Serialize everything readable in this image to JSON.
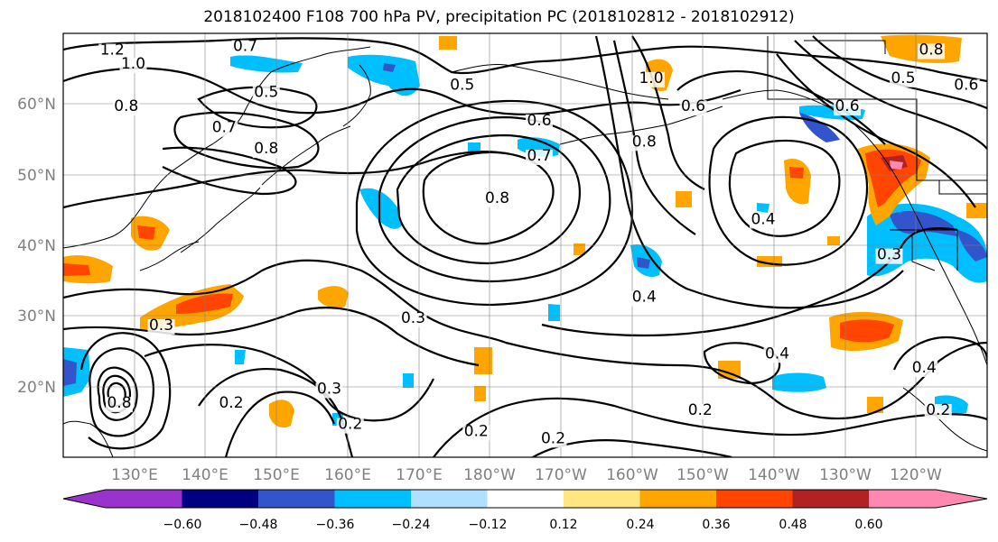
{
  "title": "2018102400 F108 700 hPa PV, precipitation PC (2018102812 - 2018102912)",
  "map": {
    "projection": "equirectangular",
    "lon_range": [
      120,
      252
    ],
    "lat_range": [
      10,
      70
    ],
    "grid": true,
    "lon_ticks": [
      "130°E",
      "140°E",
      "150°E",
      "160°E",
      "170°E",
      "180°W",
      "170°W",
      "160°W",
      "150°W",
      "140°W",
      "130°W",
      "120°W"
    ],
    "lat_ticks": [
      "20°N",
      "30°N",
      "40°N",
      "50°N",
      "60°N"
    ]
  },
  "pv_contour_labels": [
    {
      "text": "1.2",
      "lon": 127,
      "lat": 67
    },
    {
      "text": "1.0",
      "lon": 130,
      "lat": 65
    },
    {
      "text": "0.7",
      "lon": 146,
      "lat": 67.5
    },
    {
      "text": "0.8",
      "lon": 129,
      "lat": 59
    },
    {
      "text": "0.5",
      "lon": 149,
      "lat": 61
    },
    {
      "text": "0.7",
      "lon": 143,
      "lat": 56
    },
    {
      "text": "0.8",
      "lon": 149,
      "lat": 53
    },
    {
      "text": "0.5",
      "lon": 177,
      "lat": 62
    },
    {
      "text": "0.6",
      "lon": 188,
      "lat": 57
    },
    {
      "text": "0.7",
      "lon": 188,
      "lat": 52
    },
    {
      "text": "0.8",
      "lon": 182,
      "lat": 46
    },
    {
      "text": "0.8",
      "lon": 203,
      "lat": 54
    },
    {
      "text": "1.0",
      "lon": 204,
      "lat": 63
    },
    {
      "text": "0.6",
      "lon": 210,
      "lat": 59
    },
    {
      "text": "0.4",
      "lon": 220,
      "lat": 43
    },
    {
      "text": "0.6",
      "lon": 232,
      "lat": 59
    },
    {
      "text": "0.5",
      "lon": 240,
      "lat": 63
    },
    {
      "text": "0.8",
      "lon": 244,
      "lat": 67
    },
    {
      "text": "0.6",
      "lon": 249,
      "lat": 62
    },
    {
      "text": "0.3",
      "lon": 238,
      "lat": 38
    },
    {
      "text": "0.4",
      "lon": 203,
      "lat": 32
    },
    {
      "text": "0.4",
      "lon": 222,
      "lat": 24
    },
    {
      "text": "0.4",
      "lon": 243,
      "lat": 22
    },
    {
      "text": "0.3",
      "lon": 134,
      "lat": 28
    },
    {
      "text": "0.3",
      "lon": 170,
      "lat": 29
    },
    {
      "text": "0.3",
      "lon": 158,
      "lat": 19
    },
    {
      "text": "0.2",
      "lon": 144,
      "lat": 17
    },
    {
      "text": "0.2",
      "lon": 161,
      "lat": 14
    },
    {
      "text": "0.2",
      "lon": 179,
      "lat": 13
    },
    {
      "text": "0.2",
      "lon": 190,
      "lat": 12
    },
    {
      "text": "0.2",
      "lon": 211,
      "lat": 16
    },
    {
      "text": "0.2",
      "lon": 245,
      "lat": 16
    },
    {
      "text": "0.8",
      "lon": 128,
      "lat": 17
    }
  ],
  "colorbar": {
    "ticks": [
      "−0.60",
      "−0.48",
      "−0.36",
      "−0.24",
      "−0.12",
      "0.12",
      "0.24",
      "0.36",
      "0.48",
      "0.60"
    ],
    "bin_colors": [
      "#9933cc",
      "#000080",
      "#3355cc",
      "#00bfff",
      "#b0e0ff",
      "#ffffff",
      "#ffe680",
      "#ffa500",
      "#ff4500",
      "#b22222",
      "#ff88b0"
    ],
    "extend": "both"
  }
}
